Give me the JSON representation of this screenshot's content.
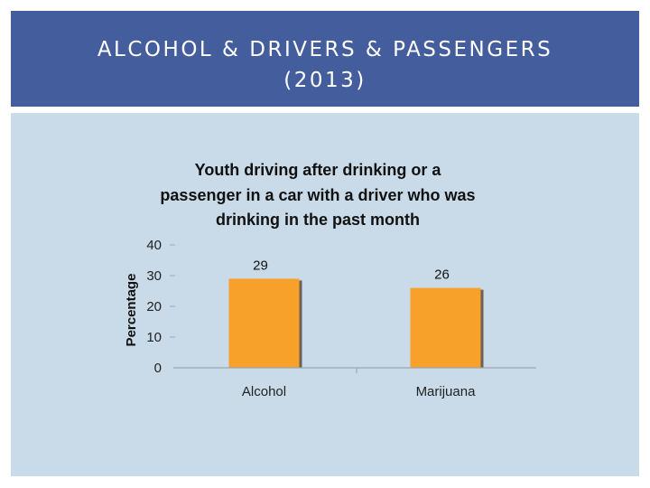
{
  "slide": {
    "title": "ALCOHOL & DRIVERS & PASSENGERS\n(2013)",
    "header_color": "#445d9c",
    "panel_color": "#c9dbe8"
  },
  "chart_data": {
    "type": "bar",
    "title_lines": [
      "Youth driving after drinking or a",
      "passenger in a car with a driver who was",
      "drinking in the past month"
    ],
    "categories": [
      "Alcohol",
      "Marijuana"
    ],
    "values": [
      29,
      26
    ],
    "value_labels": [
      "29",
      "26"
    ],
    "ylabel": "Percentage",
    "xlabel": "",
    "ylim": [
      0,
      40
    ],
    "yticks": [
      0,
      10,
      20,
      30,
      40
    ],
    "bar_color": "#f7a12b",
    "grid": false,
    "legend": "none"
  }
}
